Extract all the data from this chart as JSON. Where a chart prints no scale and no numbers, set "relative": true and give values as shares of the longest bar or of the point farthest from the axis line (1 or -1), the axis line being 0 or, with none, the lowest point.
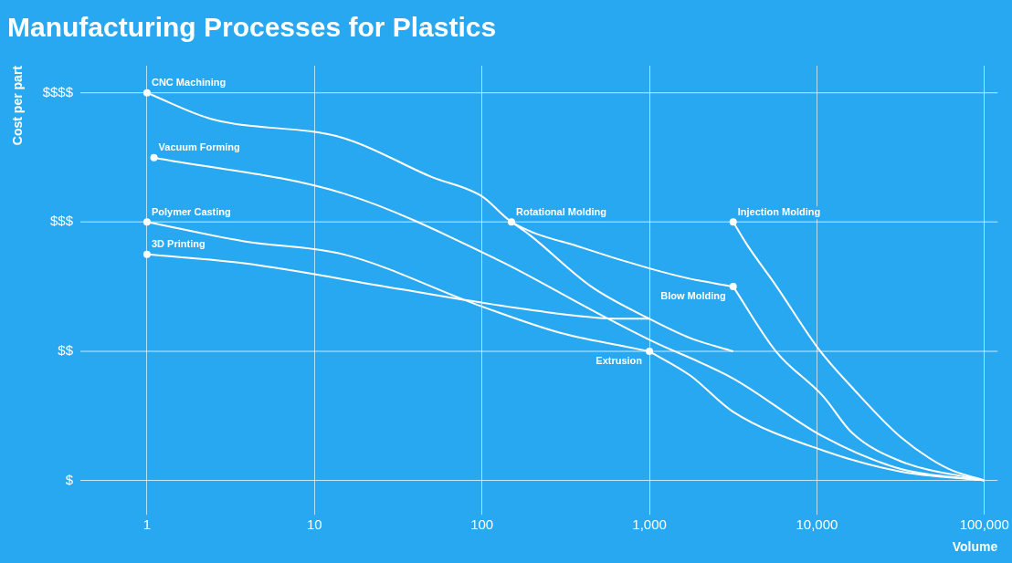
{
  "chart_data": {
    "type": "line",
    "title": "Manufacturing Processes for Plastics",
    "xlabel": "Volume",
    "ylabel": "Cost per part",
    "log": "x",
    "grid": "x",
    "legend": false,
    "relative": true,
    "xlim": [
      0.4,
      120000
    ],
    "xticks": [
      1,
      10,
      100,
      {
        "value": 1000,
        "label": "1,000"
      },
      {
        "value": 10000,
        "label": "10,000"
      },
      {
        "value": 100000,
        "label": "100,000"
      }
    ],
    "ref_lines": [
      {
        "axis": "y",
        "value": 0,
        "label": "$",
        "color": "#ffffff"
      },
      {
        "axis": "y",
        "value": 0.333,
        "label": "$$",
        "color": "#ffffff"
      },
      {
        "axis": "y",
        "value": 0.667,
        "label": "$$$",
        "color": "#ffffff"
      },
      {
        "axis": "y",
        "value": 1,
        "label": "$$$$",
        "color": "#ffffff"
      }
    ],
    "series": [
      {
        "name": "CNC Machining",
        "color": "#ffffff",
        "x": [
          1,
          2.4,
          15,
          50,
          100,
          150,
          400,
          1000,
          1760,
          3162
        ],
        "values": [
          1,
          0.933,
          0.883,
          0.783,
          0.733,
          0.667,
          0.6,
          0.547,
          0.52,
          0.5
        ]
      },
      {
        "name": "Vacuum Forming",
        "color": "#ffffff",
        "x": [
          1.1,
          15,
          127,
          450,
          1000,
          3162,
          10900,
          31400,
          100000
        ],
        "values": [
          0.833,
          0.74,
          0.567,
          0.44,
          0.363,
          0.263,
          0.113,
          0.03,
          0
        ]
      },
      {
        "name": "Polymer Casting",
        "color": "#ffffff",
        "x": [
          1,
          3.8,
          15,
          98,
          297,
          684,
          1000
        ],
        "values": [
          0.667,
          0.617,
          0.583,
          0.45,
          0.38,
          0.347,
          0.333
        ]
      },
      {
        "name": "3D Printing",
        "color": "#ffffff",
        "x": [
          1,
          3.8,
          33,
          193,
          684,
          1000
        ],
        "values": [
          0.583,
          0.56,
          0.493,
          0.44,
          0.417,
          0.417
        ]
      },
      {
        "name": "Rotational Molding",
        "color": "#ffffff",
        "x": [
          150,
          193,
          450,
          1000,
          1760,
          3162
        ],
        "values": [
          0.667,
          0.633,
          0.5,
          0.417,
          0.367,
          0.333
        ]
      },
      {
        "name": "Injection Molding",
        "color": "#ffffff",
        "x": [
          3162,
          3840,
          5690,
          10200,
          16200,
          31400,
          60800,
          100000
        ],
        "values": [
          0.667,
          0.607,
          0.503,
          0.34,
          0.24,
          0.113,
          0.03,
          0
        ]
      },
      {
        "name": "Blow Molding",
        "color": "#ffffff",
        "x": [
          3162,
          5690,
          10900,
          16200,
          31400,
          100000
        ],
        "values": [
          0.5,
          0.333,
          0.217,
          0.123,
          0.05,
          0
        ]
      },
      {
        "name": "Extrusion",
        "color": "#ffffff",
        "x": [
          1000,
          1760,
          3162,
          10900,
          31400,
          100000
        ],
        "values": [
          0.333,
          0.27,
          0.177,
          0.077,
          0.023,
          0
        ]
      }
    ]
  }
}
